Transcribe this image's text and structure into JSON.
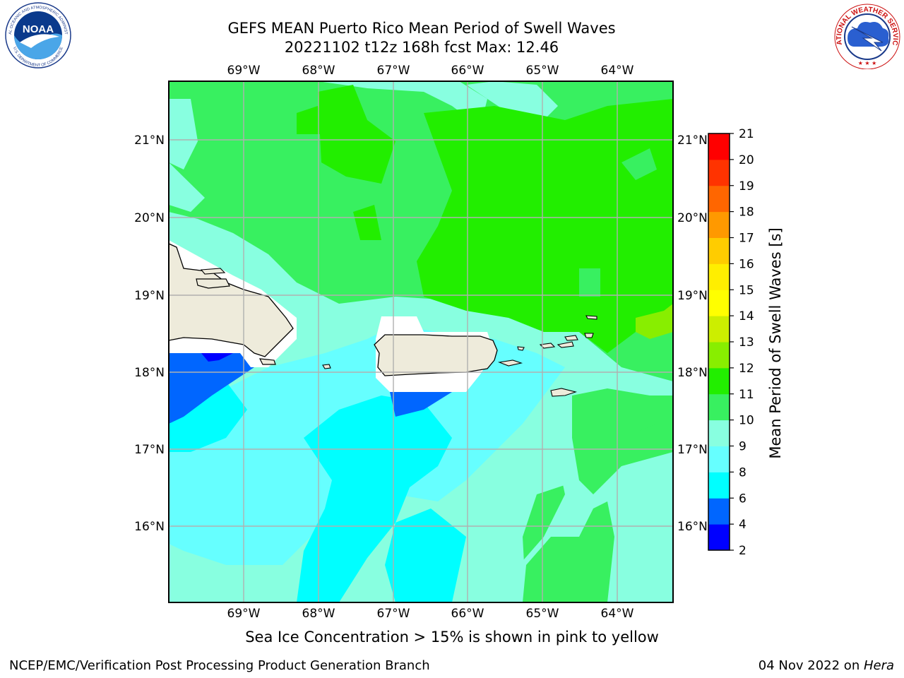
{
  "header": {
    "title": "GEFS MEAN Puerto Rico Mean Period of Swell Waves",
    "subtitle": "20221102 t12z 168h fcst   Max: 12.46"
  },
  "logos": {
    "left": "noaa-logo",
    "left_text": "NOAA",
    "left_ring_top": "NATIONAL OCEANIC AND ATMOSPHERIC ADMINISTRATION",
    "left_ring_bottom": "U.S. DEPARTMENT OF COMMERCE",
    "right": "nws-logo",
    "right_ring": "NATIONAL WEATHER SERVICE"
  },
  "map": {
    "lon_labels": [
      "69°W",
      "68°W",
      "67°W",
      "66°W",
      "65°W",
      "64°W"
    ],
    "lat_labels": [
      "21°N",
      "20°N",
      "19°N",
      "18°N",
      "17°N",
      "16°N"
    ],
    "land_color": "#eeebdb",
    "coast_color": "#000000",
    "grid_color": "#b0b0b0"
  },
  "colorbar": {
    "label": "Mean Period of Swell Waves [s]",
    "ticks": [
      "2",
      "4",
      "6",
      "8",
      "9",
      "10",
      "11",
      "12",
      "13",
      "14",
      "15",
      "16",
      "17",
      "18",
      "19",
      "20",
      "21"
    ],
    "colors": [
      "#0000ff",
      "#0066ff",
      "#00ffff",
      "#66ffff",
      "#88ffe0",
      "#38f060",
      "#22ee00",
      "#88ee00",
      "#ccee00",
      "#ffff00",
      "#ffee00",
      "#ffcc00",
      "#ff9900",
      "#ff6600",
      "#ff3300",
      "#ff0000"
    ]
  },
  "note": "Sea Ice Concentration > 15% is shown in pink to yellow",
  "footer": {
    "left": "NCEP/EMC/Verification Post Processing Product Generation Branch",
    "date": "04 Nov 2022 on ",
    "host": "Hera"
  }
}
